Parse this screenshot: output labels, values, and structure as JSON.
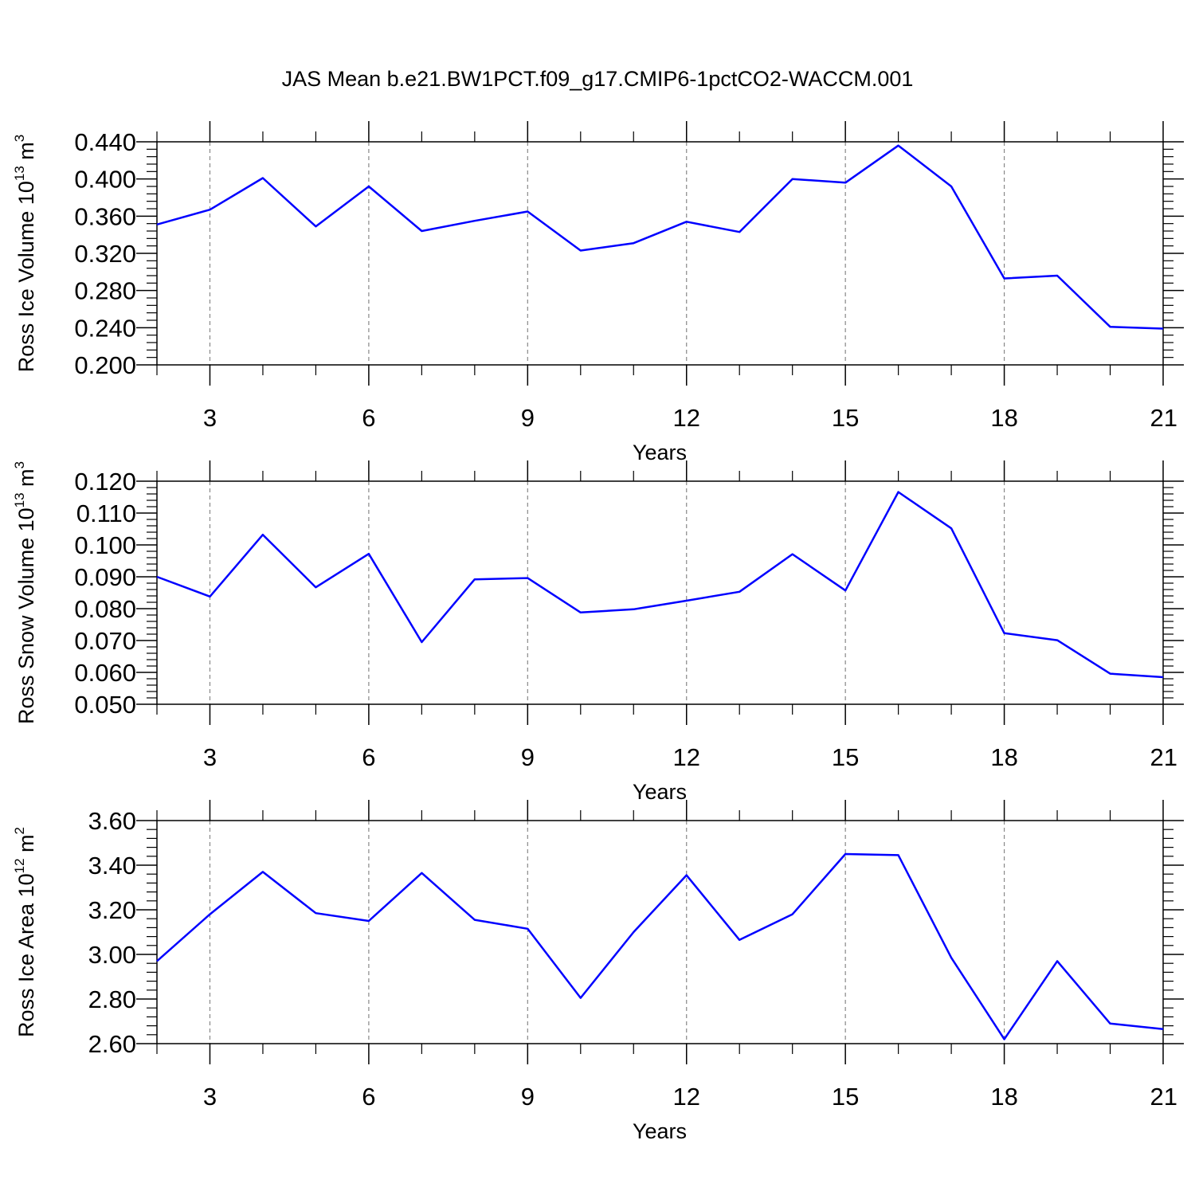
{
  "title": "JAS Mean b.e21.BW1PCT.f09_g17.CMIP6-1pctCO2-WACCM.001",
  "colors": {
    "line": "#0000ff",
    "axis": "#000000",
    "grid": "#888888"
  },
  "chart_data": [
    {
      "type": "line",
      "xlabel": "Years",
      "ylabel": {
        "main": "Ross Ice Volume 10",
        "sup": "13",
        "unit": " m",
        "unit_sup": "3"
      },
      "xlim": [
        2,
        21
      ],
      "ylim": [
        0.2,
        0.44
      ],
      "xticks": [
        3,
        6,
        9,
        12,
        15,
        18,
        21
      ],
      "xtick_labels": [
        "3",
        "6",
        "9",
        "12",
        "15",
        "18",
        "21"
      ],
      "yticks": [
        0.2,
        0.24,
        0.28,
        0.32,
        0.36,
        0.4,
        0.44
      ],
      "ytick_labels": [
        "0.200",
        "0.240",
        "0.280",
        "0.320",
        "0.360",
        "0.400",
        "0.440"
      ],
      "grid": "vertical dashed at major x ticks",
      "x": [
        2,
        3,
        4,
        5,
        6,
        7,
        8,
        9,
        10,
        11,
        12,
        13,
        14,
        15,
        16,
        17,
        18,
        19,
        20,
        21
      ],
      "y": [
        0.351,
        0.367,
        0.401,
        0.349,
        0.392,
        0.344,
        0.355,
        0.365,
        0.323,
        0.331,
        0.354,
        0.343,
        0.4,
        0.396,
        0.436,
        0.392,
        0.293,
        0.296,
        0.241,
        0.239
      ]
    },
    {
      "type": "line",
      "xlabel": "Years",
      "ylabel": {
        "main": "Ross Snow Volume 10",
        "sup": "13",
        "unit": " m",
        "unit_sup": "3"
      },
      "xlim": [
        2,
        21
      ],
      "ylim": [
        0.05,
        0.12
      ],
      "xticks": [
        3,
        6,
        9,
        12,
        15,
        18,
        21
      ],
      "xtick_labels": [
        "3",
        "6",
        "9",
        "12",
        "15",
        "18",
        "21"
      ],
      "yticks": [
        0.05,
        0.06,
        0.07,
        0.08,
        0.09,
        0.1,
        0.11,
        0.12
      ],
      "ytick_labels": [
        "0.050",
        "0.060",
        "0.070",
        "0.080",
        "0.090",
        "0.100",
        "0.110",
        "0.120"
      ],
      "grid": "vertical dashed at major x ticks",
      "x": [
        2,
        3,
        4,
        5,
        6,
        7,
        8,
        9,
        10,
        11,
        12,
        13,
        14,
        15,
        16,
        17,
        18,
        19,
        20,
        21
      ],
      "y": [
        0.09,
        0.0838,
        0.1032,
        0.0867,
        0.0972,
        0.0695,
        0.0892,
        0.0896,
        0.0788,
        0.0798,
        0.0825,
        0.0853,
        0.0971,
        0.0857,
        0.1166,
        0.1052,
        0.0723,
        0.0701,
        0.0596,
        0.0585
      ]
    },
    {
      "type": "line",
      "xlabel": "Years",
      "ylabel": {
        "main": "Ross Ice Area 10",
        "sup": "12",
        "unit": " m",
        "unit_sup": "2"
      },
      "xlim": [
        2,
        21
      ],
      "ylim": [
        2.6,
        3.6
      ],
      "xticks": [
        3,
        6,
        9,
        12,
        15,
        18,
        21
      ],
      "xtick_labels": [
        "3",
        "6",
        "9",
        "12",
        "15",
        "18",
        "21"
      ],
      "yticks": [
        2.6,
        2.8,
        3.0,
        3.2,
        3.4,
        3.6
      ],
      "ytick_labels": [
        "2.60",
        "2.80",
        "3.00",
        "3.20",
        "3.40",
        "3.60"
      ],
      "grid": "vertical dashed at major x ticks",
      "x": [
        2,
        3,
        4,
        5,
        6,
        7,
        8,
        9,
        10,
        11,
        12,
        13,
        14,
        15,
        16,
        17,
        18,
        19,
        20,
        21
      ],
      "y": [
        2.97,
        3.18,
        3.37,
        3.185,
        3.15,
        3.365,
        3.155,
        3.115,
        2.805,
        3.1,
        3.355,
        3.065,
        3.18,
        3.45,
        3.445,
        2.985,
        2.62,
        2.97,
        2.69,
        2.665
      ]
    }
  ]
}
